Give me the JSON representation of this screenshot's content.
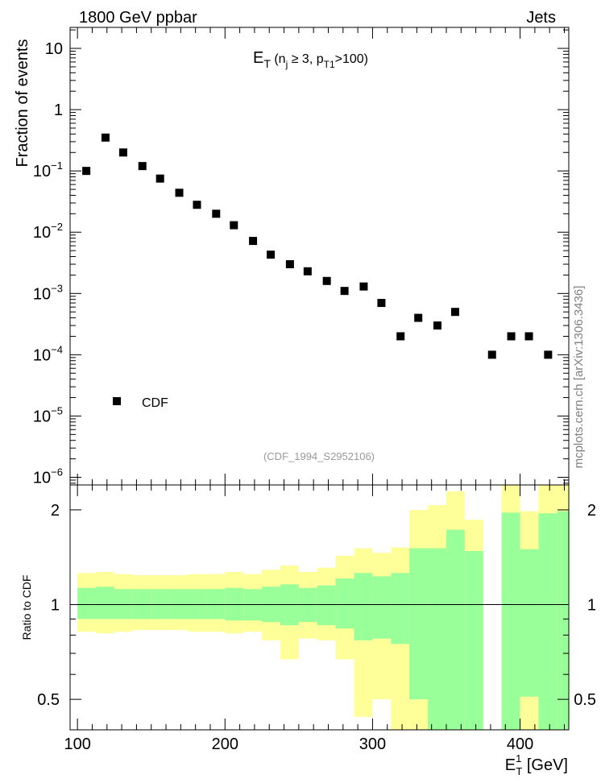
{
  "header": {
    "left": "1800 GeV ppbar",
    "right": "Jets"
  },
  "side_label": "mcplots.cern.ch [arXiv:1306.3436]",
  "chart_data": [
    {
      "type": "scatter",
      "title_main": "E",
      "title_sub": "T",
      "title_rest": " (n",
      "title_sub2": "j",
      "title_rest2": " ≥ 3, p",
      "title_sub3": "T1",
      "title_rest3": ">100)",
      "ylabel": "Fraction of events",
      "yscale": "log",
      "ylim": [
        7.5e-07,
        22
      ],
      "xlim": [
        95,
        433
      ],
      "yticks": [
        {
          "v": 10,
          "label": "10"
        },
        {
          "v": 1,
          "label": "1"
        },
        {
          "v": 0.1,
          "base": "10",
          "exp": "−1"
        },
        {
          "v": 0.01,
          "base": "10",
          "exp": "−2"
        },
        {
          "v": 0.001,
          "base": "10",
          "exp": "−3"
        },
        {
          "v": 0.0001,
          "base": "10",
          "exp": "−4"
        },
        {
          "v": 1e-05,
          "base": "10",
          "exp": "−5"
        },
        {
          "v": 1e-06,
          "base": "10",
          "exp": "−6"
        }
      ],
      "legend": {
        "label": "CDF",
        "position": "lower-left"
      },
      "annotation": "(CDF_1994_S2952106)",
      "series": [
        {
          "name": "CDF",
          "x": [
            106,
            119,
            131,
            144,
            156,
            169,
            181,
            194,
            206,
            219,
            231,
            244,
            256,
            269,
            281,
            294,
            306,
            319,
            331,
            344,
            356,
            381,
            394,
            406,
            419
          ],
          "y": [
            0.1,
            0.35,
            0.2,
            0.12,
            0.075,
            0.044,
            0.028,
            0.02,
            0.013,
            0.0072,
            0.0043,
            0.003,
            0.0023,
            0.0016,
            0.0011,
            0.0013,
            0.0007,
            0.0002,
            0.0004,
            0.0003,
            0.0005,
            0.0001,
            0.0002,
            0.0002,
            0.0001
          ]
        }
      ]
    },
    {
      "type": "area",
      "ylabel": "Ratio to CDF",
      "xlabel_main": "E",
      "xlabel_sup": "1",
      "xlabel_sub": "T",
      "xlabel_rest": " [GeV]",
      "yscale": "log",
      "ylim": [
        0.4,
        2.4
      ],
      "xlim": [
        95,
        433
      ],
      "yticks": [
        {
          "v": 2,
          "label": "2"
        },
        {
          "v": 1,
          "label": "1"
        },
        {
          "v": 0.5,
          "label": "0.5"
        }
      ],
      "xticks": [
        {
          "v": 100,
          "label": "100"
        },
        {
          "v": 200,
          "label": "200"
        },
        {
          "v": 300,
          "label": "300"
        },
        {
          "v": 400,
          "label": "400"
        }
      ],
      "reference_line": 1,
      "colors": {
        "band_1sigma": "#99ff99",
        "band_2sigma": "#ffff99"
      },
      "bins": [
        {
          "x0": 100,
          "x1": 112.5,
          "in_lo": 0.9,
          "in_hi": 1.13,
          "out_lo": 0.82,
          "out_hi": 1.26
        },
        {
          "x0": 112.5,
          "x1": 125,
          "in_lo": 0.9,
          "in_hi": 1.14,
          "out_lo": 0.81,
          "out_hi": 1.27
        },
        {
          "x0": 125,
          "x1": 137.5,
          "in_lo": 0.9,
          "in_hi": 1.12,
          "out_lo": 0.82,
          "out_hi": 1.25
        },
        {
          "x0": 137.5,
          "x1": 150,
          "in_lo": 0.9,
          "in_hi": 1.12,
          "out_lo": 0.83,
          "out_hi": 1.24
        },
        {
          "x0": 150,
          "x1": 162.5,
          "in_lo": 0.9,
          "in_hi": 1.12,
          "out_lo": 0.83,
          "out_hi": 1.24
        },
        {
          "x0": 162.5,
          "x1": 175,
          "in_lo": 0.9,
          "in_hi": 1.12,
          "out_lo": 0.83,
          "out_hi": 1.24
        },
        {
          "x0": 175,
          "x1": 187.5,
          "in_lo": 0.9,
          "in_hi": 1.12,
          "out_lo": 0.82,
          "out_hi": 1.25
        },
        {
          "x0": 187.5,
          "x1": 200,
          "in_lo": 0.9,
          "in_hi": 1.12,
          "out_lo": 0.82,
          "out_hi": 1.25
        },
        {
          "x0": 200,
          "x1": 212.5,
          "in_lo": 0.89,
          "in_hi": 1.13,
          "out_lo": 0.81,
          "out_hi": 1.27
        },
        {
          "x0": 212.5,
          "x1": 225,
          "in_lo": 0.89,
          "in_hi": 1.12,
          "out_lo": 0.82,
          "out_hi": 1.25
        },
        {
          "x0": 225,
          "x1": 237.5,
          "in_lo": 0.88,
          "in_hi": 1.14,
          "out_lo": 0.77,
          "out_hi": 1.29
        },
        {
          "x0": 237.5,
          "x1": 250,
          "in_lo": 0.86,
          "in_hi": 1.16,
          "out_lo": 0.67,
          "out_hi": 1.33
        },
        {
          "x0": 250,
          "x1": 262.5,
          "in_lo": 0.88,
          "in_hi": 1.13,
          "out_lo": 0.78,
          "out_hi": 1.27
        },
        {
          "x0": 262.5,
          "x1": 275,
          "in_lo": 0.86,
          "in_hi": 1.15,
          "out_lo": 0.77,
          "out_hi": 1.31
        },
        {
          "x0": 275,
          "x1": 287.5,
          "in_lo": 0.84,
          "in_hi": 1.21,
          "out_lo": 0.67,
          "out_hi": 1.43
        },
        {
          "x0": 287.5,
          "x1": 300,
          "in_lo": 0.77,
          "in_hi": 1.26,
          "out_lo": 0.44,
          "out_hi": 1.51
        },
        {
          "x0": 300,
          "x1": 312.5,
          "in_lo": 0.78,
          "in_hi": 1.23,
          "out_lo": 0.5,
          "out_hi": 1.46
        },
        {
          "x0": 312.5,
          "x1": 325,
          "in_lo": 0.75,
          "in_hi": 1.26,
          "out_lo": 0.4,
          "out_hi": 1.52
        },
        {
          "x0": 325,
          "x1": 337.5,
          "in_lo": 0.5,
          "in_hi": 1.51,
          "out_lo": 0.4,
          "out_hi": 2.0
        },
        {
          "x0": 337.5,
          "x1": 350,
          "in_lo": 0.4,
          "in_hi": 1.51,
          "out_lo": 0.4,
          "out_hi": 2.07
        },
        {
          "x0": 350,
          "x1": 362.5,
          "in_lo": 0.4,
          "in_hi": 1.73,
          "out_lo": 0.4,
          "out_hi": 2.29
        },
        {
          "x0": 362.5,
          "x1": 375,
          "in_lo": 0.4,
          "in_hi": 1.48,
          "out_lo": 0.4,
          "out_hi": 1.86
        },
        {
          "x0": 375,
          "x1": 387.5,
          "in_lo": null,
          "in_hi": null,
          "out_lo": null,
          "out_hi": null
        },
        {
          "x0": 387.5,
          "x1": 400,
          "in_lo": 0.4,
          "in_hi": 1.96,
          "out_lo": 0.4,
          "out_hi": 2.4
        },
        {
          "x0": 400,
          "x1": 412.5,
          "in_lo": 0.51,
          "in_hi": 1.5,
          "out_lo": 0.4,
          "out_hi": 1.98
        },
        {
          "x0": 412.5,
          "x1": 425,
          "in_lo": 0.4,
          "in_hi": 1.95,
          "out_lo": 0.4,
          "out_hi": 2.4
        },
        {
          "x0": 425,
          "x1": 433,
          "in_lo": 0.4,
          "in_hi": 1.98,
          "out_lo": 0.4,
          "out_hi": 2.4
        }
      ]
    }
  ]
}
